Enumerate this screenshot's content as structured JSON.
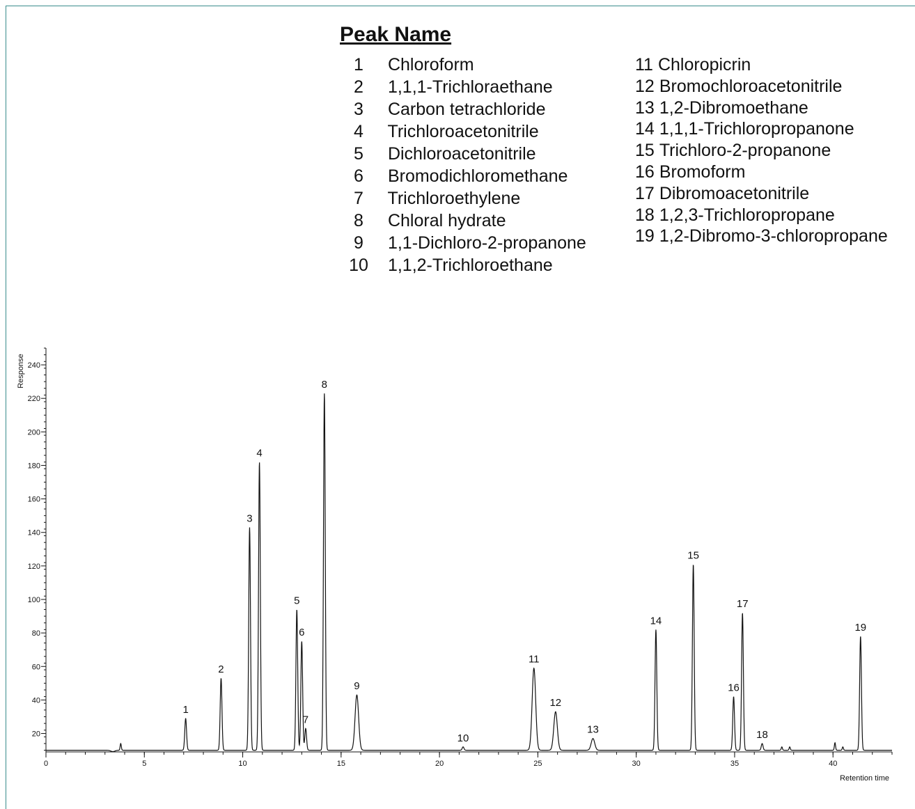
{
  "legend": {
    "title": "Peak Name",
    "column1": [
      {
        "num": "1",
        "name": "Chloroform"
      },
      {
        "num": "2",
        "name": "1,1,1-Trichloraethane"
      },
      {
        "num": "3",
        "name": "Carbon tetrachloride"
      },
      {
        "num": "4",
        "name": "Trichloroacetonitrile"
      },
      {
        "num": "5",
        "name": "Dichloroacetonitrile"
      },
      {
        "num": "6",
        "name": "Bromodichloromethane"
      },
      {
        "num": "7",
        "name": "Trichloroethylene"
      },
      {
        "num": "8",
        "name": "Chloral hydrate"
      },
      {
        "num": "9",
        "name": "1,1-Dichloro-2-propanone"
      },
      {
        "num": "10",
        "name": "1,1,2-Trichloroethane"
      }
    ],
    "column2": [
      {
        "num": "11",
        "name": "Chloropicrin"
      },
      {
        "num": "12",
        "name": "Bromochloroacetonitrile"
      },
      {
        "num": "13",
        "name": "1,2-Dibromoethane"
      },
      {
        "num": "14",
        "name": "1,1,1-Trichloropropanone"
      },
      {
        "num": "15",
        "name": "Trichloro-2-propanone"
      },
      {
        "num": "16",
        "name": "Bromoform"
      },
      {
        "num": "17",
        "name": "Dibromoacetonitrile"
      },
      {
        "num": "18",
        "name": "1,2,3-Trichloropropane"
      },
      {
        "num": "19",
        "name": "1,2-Dibromo-3-chloropropane"
      }
    ]
  },
  "chart_data": {
    "type": "line",
    "xlabel": "Retention time",
    "ylabel": "Response",
    "xlim": [
      0,
      43
    ],
    "ylim": [
      9,
      250
    ],
    "baseline": 10,
    "x_ticks": [
      0,
      5,
      10,
      15,
      20,
      25,
      30,
      35,
      40
    ],
    "y_ticks": [
      20,
      40,
      60,
      80,
      100,
      120,
      140,
      160,
      180,
      200,
      220,
      240
    ],
    "peaks": [
      {
        "label": "1",
        "x": 7.1,
        "y": 29
      },
      {
        "label": "2",
        "x": 8.9,
        "y": 53
      },
      {
        "label": "3",
        "x": 10.35,
        "y": 143
      },
      {
        "label": "4",
        "x": 10.85,
        "y": 182
      },
      {
        "label": "5",
        "x": 12.75,
        "y": 94
      },
      {
        "label": "6",
        "x": 13.0,
        "y": 75
      },
      {
        "label": "7",
        "x": 13.2,
        "y": 23
      },
      {
        "label": "8",
        "x": 14.15,
        "y": 223
      },
      {
        "label": "9",
        "x": 15.8,
        "y": 43
      },
      {
        "label": "10",
        "x": 21.2,
        "y": 12
      },
      {
        "label": "11",
        "x": 24.8,
        "y": 59
      },
      {
        "label": "12",
        "x": 25.9,
        "y": 33
      },
      {
        "label": "13",
        "x": 27.8,
        "y": 17
      },
      {
        "label": "14",
        "x": 31.0,
        "y": 82
      },
      {
        "label": "15",
        "x": 32.9,
        "y": 121
      },
      {
        "label": "16",
        "x": 34.95,
        "y": 42
      },
      {
        "label": "17",
        "x": 35.4,
        "y": 92
      },
      {
        "label": "18",
        "x": 36.4,
        "y": 14
      },
      {
        "label": "19",
        "x": 41.4,
        "y": 78
      }
    ],
    "minor_peaks": [
      {
        "x": 3.8,
        "y": 14
      },
      {
        "x": 37.4,
        "y": 12
      },
      {
        "x": 37.8,
        "y": 12
      },
      {
        "x": 40.1,
        "y": 14.5
      },
      {
        "x": 40.5,
        "y": 12
      }
    ]
  }
}
